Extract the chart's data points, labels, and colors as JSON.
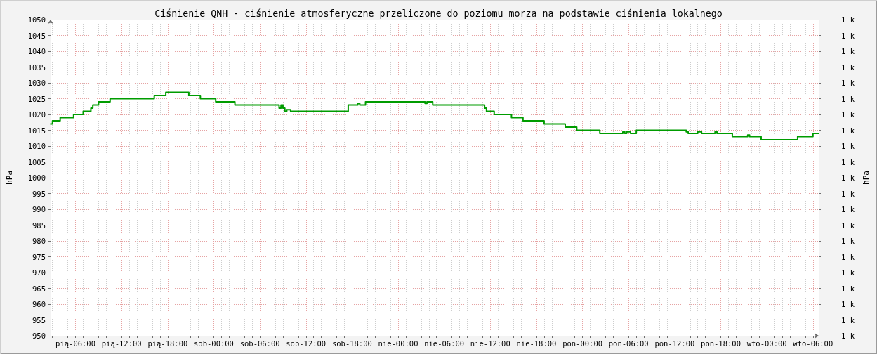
{
  "chart_data": {
    "type": "step",
    "title": "Ciśnienie QNH - ciśnienie atmosferyczne przeliczone do poziomu morza na podstawie ciśnienia lokalnego",
    "ylabel": "hPa",
    "y2label": "hPa",
    "categories": [
      null,
      null,
      null,
      null,
      null,
      null,
      null,
      null,
      null,
      null,
      null,
      null,
      null,
      "pią-06:00",
      null,
      null,
      null,
      null,
      null,
      null,
      null,
      null,
      null,
      null,
      null,
      null,
      null,
      null,
      null,
      null,
      null,
      null,
      null,
      null,
      null,
      null,
      null,
      "pią-12:00",
      null,
      null,
      null,
      null,
      null,
      null,
      null,
      null,
      null,
      null,
      null,
      null,
      null,
      null,
      null,
      null,
      null,
      null,
      null,
      null,
      null,
      null,
      null,
      "pią-18:00",
      null,
      null,
      null,
      null,
      null,
      null,
      null,
      null,
      null,
      null,
      null,
      null,
      null,
      null,
      null,
      null,
      null,
      null,
      null,
      null,
      null,
      null,
      null,
      "sob-00:00",
      null,
      null,
      null,
      null,
      null,
      null,
      null,
      null,
      null,
      null,
      null,
      null,
      null,
      null,
      null,
      null,
      null,
      null,
      null,
      null,
      null,
      null,
      null,
      "sob-06:00",
      null,
      null,
      null,
      null,
      null,
      null,
      null,
      null,
      null,
      null,
      null,
      null,
      null,
      null,
      null,
      null,
      null,
      null,
      null,
      null,
      null,
      null,
      null,
      "sob-12:00",
      null,
      null,
      null,
      null,
      null,
      null,
      null,
      null,
      null,
      null,
      null,
      null,
      null,
      null,
      null,
      null,
      null,
      null,
      null,
      null,
      null,
      null,
      null,
      "sob-18:00",
      null,
      null,
      null,
      null,
      null,
      null,
      null,
      null,
      null,
      null,
      null,
      null,
      null,
      null,
      null,
      null,
      null,
      null,
      null,
      null,
      null,
      null,
      null,
      "nie-00:00",
      null,
      null,
      null,
      null,
      null,
      null,
      null,
      null,
      null,
      null,
      null,
      null,
      null,
      null,
      null,
      null,
      null,
      null,
      null,
      null,
      null,
      null,
      null,
      "nie-06:00",
      null,
      null,
      null,
      null,
      null,
      null,
      null,
      null,
      null,
      null,
      null,
      null,
      null,
      null,
      null,
      null,
      null,
      null,
      null,
      null,
      null,
      null,
      null,
      "nie-12:00",
      null,
      null,
      null,
      null,
      null,
      null,
      null,
      null,
      null,
      null,
      null,
      null,
      null,
      null,
      null,
      null,
      null,
      null,
      null,
      null,
      null,
      null,
      null,
      "nie-18:00",
      null,
      null,
      null,
      null,
      null,
      null,
      null,
      null,
      null,
      null,
      null,
      null,
      null,
      null,
      null,
      null,
      null,
      null,
      null,
      null,
      null,
      null,
      null,
      "pon-00:00",
      null,
      null,
      null,
      null,
      null,
      null,
      null,
      null,
      null,
      null,
      null,
      null,
      null,
      null,
      null,
      null,
      null,
      null,
      null,
      null,
      null,
      null,
      null,
      "pon-06:00",
      null,
      null,
      null,
      null,
      null,
      null,
      null,
      null,
      null,
      null,
      null,
      null,
      null,
      null,
      null,
      null,
      null,
      null,
      null,
      null,
      null,
      null,
      null,
      "pon-12:00",
      null,
      null,
      null,
      null,
      null,
      null,
      null,
      null,
      null,
      null,
      null,
      null,
      null,
      null,
      null,
      null,
      null,
      null,
      null,
      null,
      null,
      null,
      null,
      "pon-18:00",
      null,
      null,
      null,
      null,
      null,
      null,
      null,
      null,
      null,
      null,
      null,
      null,
      null,
      null,
      null,
      null,
      null,
      null,
      null,
      null,
      null,
      null,
      null,
      "wto-00:00",
      null,
      null,
      null,
      null,
      null,
      null,
      null,
      null,
      null,
      null,
      null,
      null,
      null,
      null,
      null,
      null,
      null,
      null,
      null,
      null,
      null,
      null,
      null,
      "wto-06:00",
      null,
      null,
      null
    ],
    "values": [
      1017,
      1018,
      1018,
      1018,
      1018,
      1019,
      1019,
      1019,
      1019,
      1019,
      1019,
      1019,
      1020,
      1020,
      1020,
      1020,
      1020,
      1021,
      1021,
      1021,
      1021,
      1022,
      1023,
      1023,
      1023,
      1024,
      1024,
      1024,
      1024,
      1024,
      1024,
      1025,
      1025,
      1025,
      1025,
      1025,
      1025,
      1025,
      1025,
      1025,
      1025,
      1025,
      1025,
      1025,
      1025,
      1025,
      1025,
      1025,
      1025,
      1025,
      1025,
      1025,
      1025,
      1025,
      1026,
      1026,
      1026,
      1026,
      1026,
      1026,
      1027,
      1027,
      1027,
      1027,
      1027,
      1027,
      1027,
      1027,
      1027,
      1027,
      1027,
      1027,
      1026,
      1026,
      1026,
      1026,
      1026,
      1026,
      1025,
      1025,
      1025,
      1025,
      1025,
      1025,
      1025,
      1025,
      1024,
      1024,
      1024,
      1024,
      1024,
      1024,
      1024,
      1024,
      1024,
      1024,
      1023,
      1023,
      1023,
      1023,
      1023,
      1023,
      1023,
      1023,
      1023,
      1023,
      1023,
      1023,
      1023,
      1023,
      1023,
      1023,
      1023,
      1023,
      1023,
      1023,
      1023,
      1023,
      1023,
      1022,
      1023,
      1022,
      1021,
      1021.5,
      1021.5,
      1021,
      1021,
      1021,
      1021,
      1021,
      1021,
      1021,
      1021,
      1021,
      1021,
      1021,
      1021,
      1021,
      1021,
      1021,
      1021,
      1021,
      1021,
      1021,
      1021,
      1021,
      1021,
      1021,
      1021,
      1021,
      1021,
      1021,
      1021,
      1021,
      1021,
      1023,
      1023,
      1023,
      1023,
      1023,
      1023.5,
      1023,
      1023,
      1023,
      1024,
      1024,
      1024,
      1024,
      1024,
      1024,
      1024,
      1024,
      1024,
      1024,
      1024,
      1024,
      1024,
      1024,
      1024,
      1024,
      1024,
      1024,
      1024,
      1024,
      1024,
      1024,
      1024,
      1024,
      1024,
      1024,
      1024,
      1024,
      1024,
      1024,
      1024,
      1023.5,
      1024,
      1024,
      1024,
      1023,
      1023,
      1023,
      1023,
      1023,
      1023,
      1023,
      1023,
      1023,
      1023,
      1023,
      1023,
      1023,
      1023,
      1023,
      1023,
      1023,
      1023,
      1023,
      1023,
      1023,
      1023,
      1023,
      1023,
      1023,
      1023,
      1023,
      1022,
      1021,
      1021,
      1021,
      1021,
      1020,
      1020,
      1020,
      1020,
      1020,
      1020,
      1020,
      1020,
      1020,
      1019,
      1019,
      1019,
      1019,
      1019,
      1019,
      1018,
      1018,
      1018,
      1018,
      1018,
      1018,
      1018,
      1018,
      1018,
      1018,
      1018,
      1017,
      1017,
      1017,
      1017,
      1017,
      1017,
      1017,
      1017,
      1017,
      1017,
      1017,
      1016,
      1016,
      1016,
      1016,
      1016,
      1016,
      1015,
      1015,
      1015,
      1015,
      1015,
      1015,
      1015,
      1015,
      1015,
      1015,
      1015,
      1015,
      1014,
      1014,
      1014,
      1014,
      1014,
      1014,
      1014,
      1014,
      1014,
      1014,
      1014,
      1014,
      1014.5,
      1014,
      1014.5,
      1014.5,
      1014,
      1014,
      1014,
      1015,
      1015,
      1015,
      1015,
      1015,
      1015,
      1015,
      1015,
      1015,
      1015,
      1015,
      1015,
      1015,
      1015,
      1015,
      1015,
      1015,
      1015,
      1015,
      1015,
      1015,
      1015,
      1015,
      1015,
      1015,
      1015,
      1014.5,
      1014,
      1014,
      1014,
      1014,
      1014,
      1014.5,
      1014.5,
      1014,
      1014,
      1014,
      1014,
      1014,
      1014,
      1014,
      1014.5,
      1014,
      1014,
      1014,
      1014,
      1014,
      1014,
      1014,
      1014,
      1013,
      1013,
      1013,
      1013,
      1013,
      1013,
      1013,
      1013,
      1013.5,
      1013,
      1013,
      1013,
      1013,
      1013,
      1013,
      1012,
      1012,
      1012,
      1012,
      1012,
      1012,
      1012,
      1012,
      1012,
      1012,
      1012,
      1012,
      1012,
      1012,
      1012,
      1012,
      1012,
      1012,
      1012,
      1013,
      1013,
      1013,
      1013,
      1013,
      1013,
      1013,
      1013,
      1014,
      1014,
      1014,
      1014
    ],
    "color": "#009c00",
    "line_style": "solid",
    "grid": true,
    "ylim": [
      950,
      1050
    ],
    "yticks": [
      950,
      955,
      960,
      965,
      970,
      975,
      980,
      985,
      990,
      995,
      1000,
      1005,
      1010,
      1015,
      1020,
      1025,
      1030,
      1035,
      1040,
      1045,
      1050
    ],
    "y2lim": [
      950,
      1050
    ],
    "y2ticks": [
      {
        "value": 950,
        "label": "1 k"
      },
      {
        "value": 955,
        "label": "1 k"
      },
      {
        "value": 960,
        "label": "1 k"
      },
      {
        "value": 965,
        "label": "1 k"
      },
      {
        "value": 970,
        "label": "1 k"
      },
      {
        "value": 975,
        "label": "1 k"
      },
      {
        "value": 980,
        "label": "1 k"
      },
      {
        "value": 985,
        "label": "1 k"
      },
      {
        "value": 990,
        "label": "1 k"
      },
      {
        "value": 995,
        "label": "1 k"
      },
      {
        "value": 1000,
        "label": "1 k"
      },
      {
        "value": 1005,
        "label": "1 k"
      },
      {
        "value": 1010,
        "label": "1 k"
      },
      {
        "value": 1015,
        "label": "1 k"
      },
      {
        "value": 1020,
        "label": "1 k"
      },
      {
        "value": 1025,
        "label": "1 k"
      },
      {
        "value": 1030,
        "label": "1 k"
      },
      {
        "value": 1035,
        "label": "1 k"
      },
      {
        "value": 1040,
        "label": "1 k"
      },
      {
        "value": 1045,
        "label": "1 k"
      },
      {
        "value": 1050,
        "label": "1 k"
      }
    ]
  }
}
